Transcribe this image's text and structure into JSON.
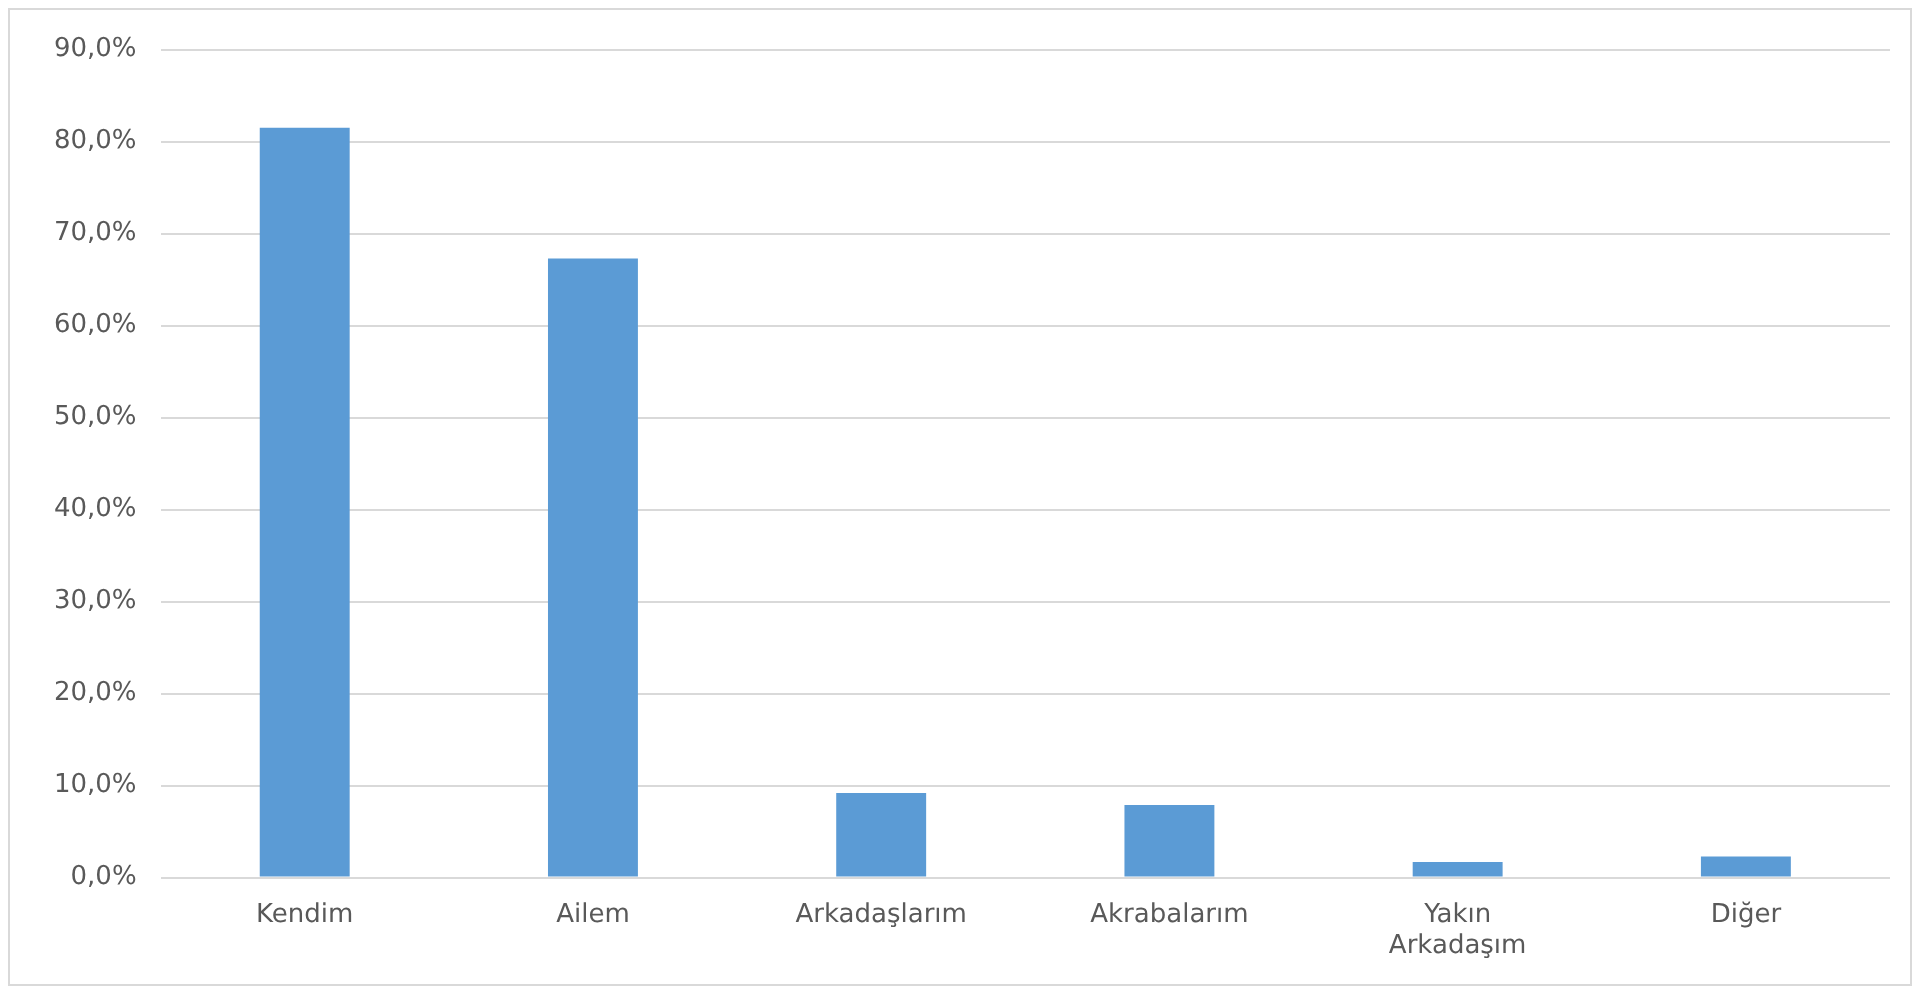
{
  "chart_data": {
    "type": "bar",
    "categories": [
      "Kendim",
      "Ailem",
      "Arkadaşlarım",
      "Akrabalarım",
      "Yakın Arkadaşım",
      "Diğer"
    ],
    "values": [
      81.5,
      67.3,
      9.2,
      7.9,
      1.7,
      2.3
    ],
    "color": "#5b9bd5",
    "ylim": [
      0,
      90
    ],
    "yticks": [
      {
        "value": 0,
        "label": "0,0%"
      },
      {
        "value": 10,
        "label": "10,0%"
      },
      {
        "value": 20,
        "label": "20,0%"
      },
      {
        "value": 30,
        "label": "30,0%"
      },
      {
        "value": 40,
        "label": "40,0%"
      },
      {
        "value": 50,
        "label": "50,0%"
      },
      {
        "value": 60,
        "label": "60,0%"
      },
      {
        "value": 70,
        "label": "70,0%"
      },
      {
        "value": 80,
        "label": "80,0%"
      },
      {
        "value": 90,
        "label": "90,0%"
      }
    ],
    "grid": "y",
    "legend": false
  }
}
